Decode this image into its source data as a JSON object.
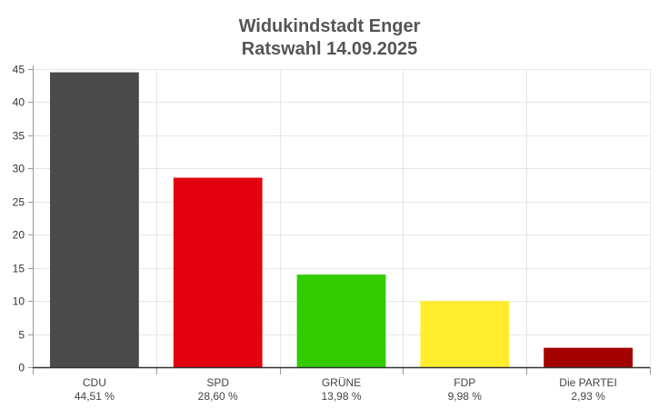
{
  "chart_data": {
    "type": "bar",
    "title": "Widukindstadt Enger",
    "subtitle": "Ratswahl 14.09.2025",
    "xlabel": "",
    "ylabel": "",
    "ylim": [
      0,
      45
    ],
    "yticks": [
      "0",
      "5",
      "10",
      "15",
      "20",
      "25",
      "30",
      "35",
      "40",
      "45"
    ],
    "grid": true,
    "categories": [
      "CDU",
      "SPD",
      "GRÜNE",
      "FDP",
      "Die PARTEI"
    ],
    "values": [
      44.51,
      28.6,
      13.98,
      9.98,
      2.93
    ],
    "value_labels": [
      "44,51 %",
      "28,60 %",
      "13,98 %",
      "9,98 %",
      "2,93 %"
    ],
    "colors": [
      "#4a4a4a",
      "#e3000f",
      "#33cc00",
      "#ffed2e",
      "#a50000"
    ]
  }
}
